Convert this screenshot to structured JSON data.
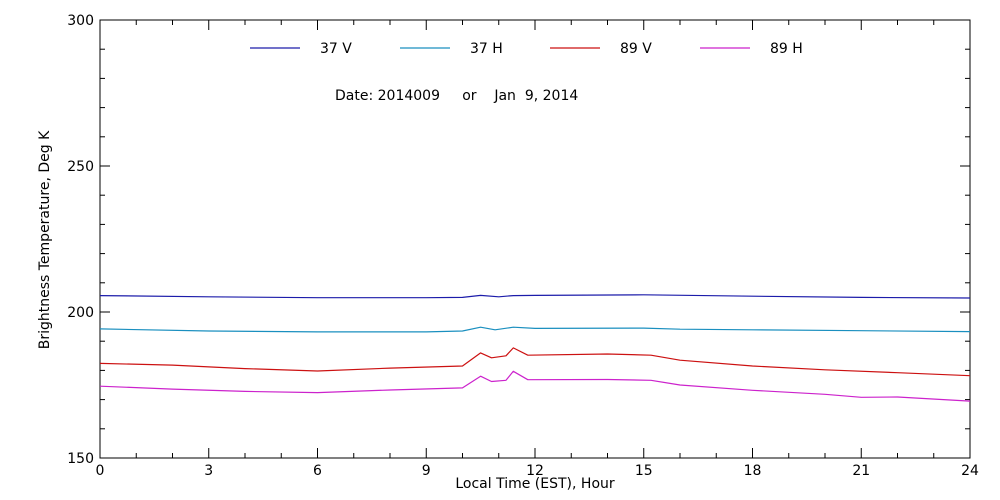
{
  "chart_data": {
    "type": "line",
    "xlabel": "Local Time (EST), Hour",
    "ylabel": "Brightness Temperature, Deg K",
    "xlim": [
      0,
      24
    ],
    "ylim": [
      150,
      300
    ],
    "xticks": [
      0,
      3,
      6,
      9,
      12,
      15,
      18,
      21,
      24
    ],
    "yticks": [
      150,
      200,
      250,
      300
    ],
    "annotation": "Date: 2014009     or    Jan  9, 2014",
    "legend_placement": "top-center",
    "grid": false,
    "series": [
      {
        "name": "37 V",
        "color": "#1c1caa",
        "points": [
          [
            0,
            205.6
          ],
          [
            3,
            205.2
          ],
          [
            6,
            204.9
          ],
          [
            9,
            204.9
          ],
          [
            10,
            205.0
          ],
          [
            10.5,
            205.7
          ],
          [
            11,
            205.2
          ],
          [
            11.4,
            205.6
          ],
          [
            12,
            205.7
          ],
          [
            15,
            205.9
          ],
          [
            18,
            205.4
          ],
          [
            21,
            205.0
          ],
          [
            24,
            204.8
          ]
        ]
      },
      {
        "name": "37 H",
        "color": "#1a8fbf",
        "points": [
          [
            0,
            194.2
          ],
          [
            3,
            193.5
          ],
          [
            6,
            193.2
          ],
          [
            9,
            193.2
          ],
          [
            10,
            193.5
          ],
          [
            10.5,
            194.8
          ],
          [
            10.9,
            193.9
          ],
          [
            11.4,
            194.8
          ],
          [
            12,
            194.4
          ],
          [
            15,
            194.5
          ],
          [
            16,
            194.1
          ],
          [
            18,
            193.9
          ],
          [
            21,
            193.6
          ],
          [
            24,
            193.3
          ]
        ]
      },
      {
        "name": "89 V",
        "color": "#cc1111",
        "points": [
          [
            0,
            182.4
          ],
          [
            2,
            181.8
          ],
          [
            4,
            180.6
          ],
          [
            6,
            179.8
          ],
          [
            8,
            180.8
          ],
          [
            10,
            181.5
          ],
          [
            10.5,
            186.0
          ],
          [
            10.8,
            184.3
          ],
          [
            11.2,
            185.0
          ],
          [
            11.4,
            187.7
          ],
          [
            11.8,
            185.2
          ],
          [
            14,
            185.6
          ],
          [
            15.2,
            185.2
          ],
          [
            16,
            183.5
          ],
          [
            18,
            181.5
          ],
          [
            20,
            180.2
          ],
          [
            22,
            179.2
          ],
          [
            24,
            178.2
          ]
        ]
      },
      {
        "name": "89 H",
        "color": "#cc22cc",
        "points": [
          [
            0,
            174.6
          ],
          [
            2,
            173.6
          ],
          [
            4,
            172.8
          ],
          [
            6,
            172.4
          ],
          [
            8,
            173.3
          ],
          [
            10,
            174.0
          ],
          [
            10.5,
            178.0
          ],
          [
            10.8,
            176.2
          ],
          [
            11.2,
            176.6
          ],
          [
            11.4,
            179.7
          ],
          [
            11.8,
            176.8
          ],
          [
            14,
            176.9
          ],
          [
            15.2,
            176.6
          ],
          [
            16,
            175.0
          ],
          [
            18,
            173.2
          ],
          [
            20,
            171.8
          ],
          [
            21,
            170.8
          ],
          [
            22,
            170.9
          ],
          [
            24,
            169.5
          ]
        ]
      }
    ]
  }
}
